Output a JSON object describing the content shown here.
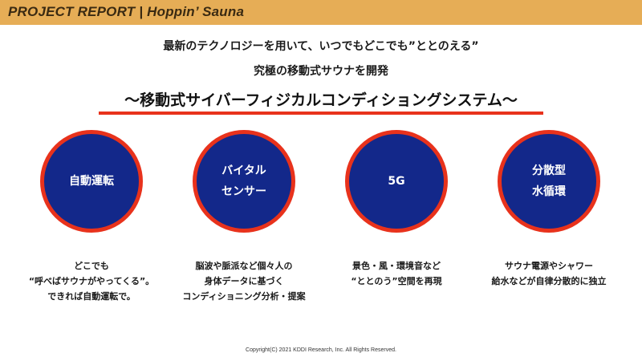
{
  "header": {
    "title": "PROJECT REPORT | Hoppin’ Sauna",
    "bar_color": "#e6ad56"
  },
  "lead": {
    "line1": "最新のテクノロジーを用いて、いつでもどこでも”ととのえる”",
    "line2": "究極の移動式サウナを開発"
  },
  "headline": {
    "text": "〜移動式サイバーフィジカルコンディショングシステム〜",
    "rule_color": "#e8321c"
  },
  "features": [
    {
      "label_lines": [
        "自動運転"
      ],
      "desc_lines": [
        "どこでも",
        "“呼べばサウナがやってくる”。",
        "できれば自動運転で。"
      ]
    },
    {
      "label_lines": [
        "バイタル",
        "センサー"
      ],
      "desc_lines": [
        "脳波や脈派など個々人の",
        "身体データに基づく",
        "コンディショニング分析・提案"
      ]
    },
    {
      "label_lines": [
        "5G"
      ],
      "desc_lines": [
        "景色・風・環境音など",
        "“ととのう”空間を再現"
      ]
    },
    {
      "label_lines": [
        "分散型",
        "水循環"
      ],
      "desc_lines": [
        "サウナ電源やシャワー",
        "給水などが自律分散的に独立"
      ]
    }
  ],
  "colors": {
    "circle_fill": "#13288a",
    "circle_border": "#e8321c"
  },
  "footer": {
    "copyright": "Copyright(C) 2021 KDDI Research, Inc. All Rights Reserved."
  }
}
